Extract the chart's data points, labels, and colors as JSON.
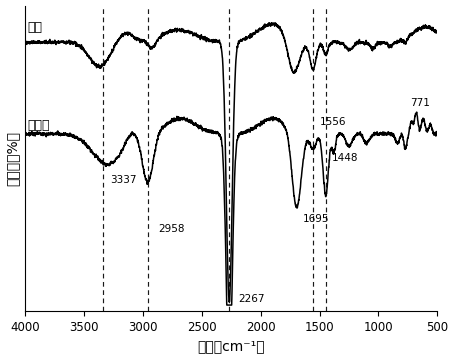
{
  "xlabel": "波数（cm⁻¹）",
  "ylabel": "透过率（%）",
  "label_monomer": "单体",
  "label_trimer": "三聚体",
  "dashed_lines_x": [
    3337,
    2958,
    2267,
    1556,
    1448
  ],
  "background_color": "#ffffff",
  "line_color": "#000000",
  "monomer_baseline": 88,
  "trimer_baseline": 58
}
